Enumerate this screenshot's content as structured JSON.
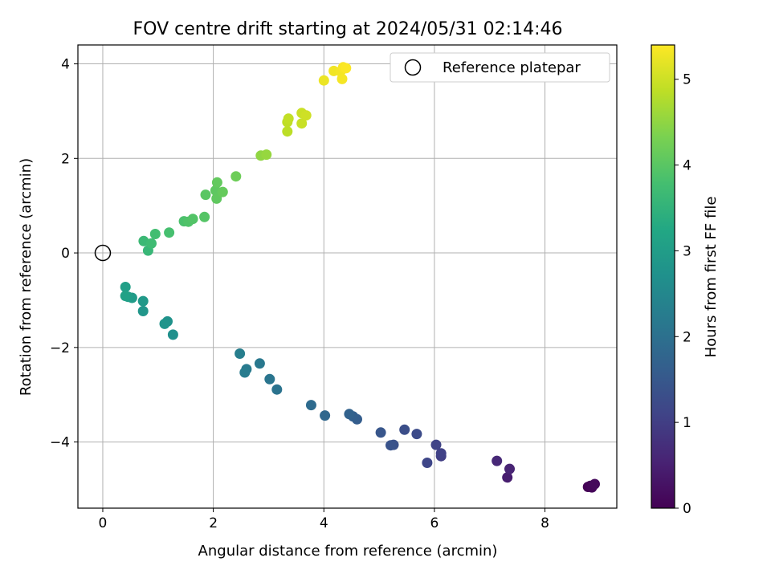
{
  "chart_data": {
    "type": "scatter",
    "title": "FOV centre drift starting at 2024/05/31 02:14:46",
    "xlabel": "Angular distance from reference (arcmin)",
    "ylabel": "Rotation from reference (arcmin)",
    "xlim": [
      -0.45,
      9.3
    ],
    "ylim": [
      -5.4,
      4.4
    ],
    "xticks": [
      0,
      2,
      4,
      6,
      8
    ],
    "yticks": [
      -4,
      -2,
      0,
      2,
      4
    ],
    "xtick_labels": [
      "0",
      "2",
      "4",
      "6",
      "8"
    ],
    "ytick_labels": [
      "−4",
      "−2",
      "0",
      "2",
      "4"
    ],
    "grid": true,
    "legend": {
      "position": "top-right",
      "label": "Reference platepar"
    },
    "reference_point": {
      "x": 0,
      "y": 0
    },
    "colorbar": {
      "label": "Hours from first FF file",
      "colormap": "viridis",
      "range": [
        0,
        5.4
      ],
      "ticks": [
        0,
        1,
        2,
        3,
        4,
        5
      ],
      "tick_labels": [
        "0",
        "1",
        "2",
        "3",
        "4",
        "5"
      ]
    },
    "points": [
      {
        "x": 8.78,
        "y": -4.95,
        "h": 0.02
      },
      {
        "x": 8.82,
        "y": -4.93,
        "h": 0.05
      },
      {
        "x": 8.85,
        "y": -4.96,
        "h": 0.08
      },
      {
        "x": 8.9,
        "y": -4.89,
        "h": 0.12
      },
      {
        "x": 7.32,
        "y": -4.75,
        "h": 0.45
      },
      {
        "x": 7.36,
        "y": -4.57,
        "h": 0.55
      },
      {
        "x": 7.13,
        "y": -4.4,
        "h": 0.62
      },
      {
        "x": 6.12,
        "y": -4.3,
        "h": 1.0
      },
      {
        "x": 6.12,
        "y": -4.24,
        "h": 1.05
      },
      {
        "x": 6.03,
        "y": -4.06,
        "h": 1.1
      },
      {
        "x": 5.87,
        "y": -4.44,
        "h": 1.15
      },
      {
        "x": 5.68,
        "y": -3.83,
        "h": 1.25
      },
      {
        "x": 5.46,
        "y": -3.74,
        "h": 1.3
      },
      {
        "x": 5.26,
        "y": -4.06,
        "h": 1.35
      },
      {
        "x": 5.21,
        "y": -4.07,
        "h": 1.4
      },
      {
        "x": 5.03,
        "y": -3.8,
        "h": 1.45
      },
      {
        "x": 4.6,
        "y": -3.52,
        "h": 1.6
      },
      {
        "x": 4.53,
        "y": -3.46,
        "h": 1.65
      },
      {
        "x": 4.46,
        "y": -3.41,
        "h": 1.7
      },
      {
        "x": 4.02,
        "y": -3.44,
        "h": 1.8
      },
      {
        "x": 3.77,
        "y": -3.22,
        "h": 1.9
      },
      {
        "x": 3.15,
        "y": -2.89,
        "h": 2.05
      },
      {
        "x": 3.02,
        "y": -2.67,
        "h": 2.1
      },
      {
        "x": 2.84,
        "y": -2.34,
        "h": 2.15
      },
      {
        "x": 2.6,
        "y": -2.46,
        "h": 2.2
      },
      {
        "x": 2.57,
        "y": -2.53,
        "h": 2.25
      },
      {
        "x": 2.48,
        "y": -2.13,
        "h": 2.3
      },
      {
        "x": 1.27,
        "y": -1.73,
        "h": 2.7
      },
      {
        "x": 1.17,
        "y": -1.45,
        "h": 2.75
      },
      {
        "x": 1.12,
        "y": -1.5,
        "h": 2.8
      },
      {
        "x": 0.73,
        "y": -1.23,
        "h": 2.85
      },
      {
        "x": 0.73,
        "y": -1.02,
        "h": 2.9
      },
      {
        "x": 0.53,
        "y": -0.95,
        "h": 2.95
      },
      {
        "x": 0.46,
        "y": -0.93,
        "h": 3.0
      },
      {
        "x": 0.41,
        "y": -0.72,
        "h": 3.05
      },
      {
        "x": 0.41,
        "y": -0.91,
        "h": 3.1
      },
      {
        "x": 0.82,
        "y": 0.05,
        "h": 3.6
      },
      {
        "x": 0.74,
        "y": 0.25,
        "h": 3.65
      },
      {
        "x": 0.88,
        "y": 0.2,
        "h": 3.7
      },
      {
        "x": 0.95,
        "y": 0.4,
        "h": 3.75
      },
      {
        "x": 1.2,
        "y": 0.43,
        "h": 3.8
      },
      {
        "x": 1.47,
        "y": 0.67,
        "h": 3.85
      },
      {
        "x": 1.55,
        "y": 0.66,
        "h": 3.9
      },
      {
        "x": 1.63,
        "y": 0.72,
        "h": 3.93
      },
      {
        "x": 1.84,
        "y": 0.76,
        "h": 3.95
      },
      {
        "x": 1.86,
        "y": 1.23,
        "h": 4.0
      },
      {
        "x": 2.04,
        "y": 1.32,
        "h": 4.05
      },
      {
        "x": 2.06,
        "y": 1.15,
        "h": 4.07
      },
      {
        "x": 2.07,
        "y": 1.49,
        "h": 4.1
      },
      {
        "x": 2.17,
        "y": 1.29,
        "h": 4.12
      },
      {
        "x": 2.41,
        "y": 1.62,
        "h": 4.2
      },
      {
        "x": 2.86,
        "y": 2.06,
        "h": 4.5
      },
      {
        "x": 2.96,
        "y": 2.08,
        "h": 4.55
      },
      {
        "x": 3.34,
        "y": 2.57,
        "h": 4.85
      },
      {
        "x": 3.34,
        "y": 2.77,
        "h": 4.88
      },
      {
        "x": 3.36,
        "y": 2.84,
        "h": 4.9
      },
      {
        "x": 3.6,
        "y": 2.74,
        "h": 4.95
      },
      {
        "x": 3.6,
        "y": 2.96,
        "h": 4.97
      },
      {
        "x": 3.68,
        "y": 2.91,
        "h": 5.0
      },
      {
        "x": 4.0,
        "y": 3.65,
        "h": 5.25
      },
      {
        "x": 4.18,
        "y": 3.85,
        "h": 5.3
      },
      {
        "x": 4.3,
        "y": 3.84,
        "h": 5.32
      },
      {
        "x": 4.33,
        "y": 3.68,
        "h": 5.33
      },
      {
        "x": 4.35,
        "y": 3.93,
        "h": 5.36
      },
      {
        "x": 4.4,
        "y": 3.91,
        "h": 5.38
      }
    ]
  }
}
